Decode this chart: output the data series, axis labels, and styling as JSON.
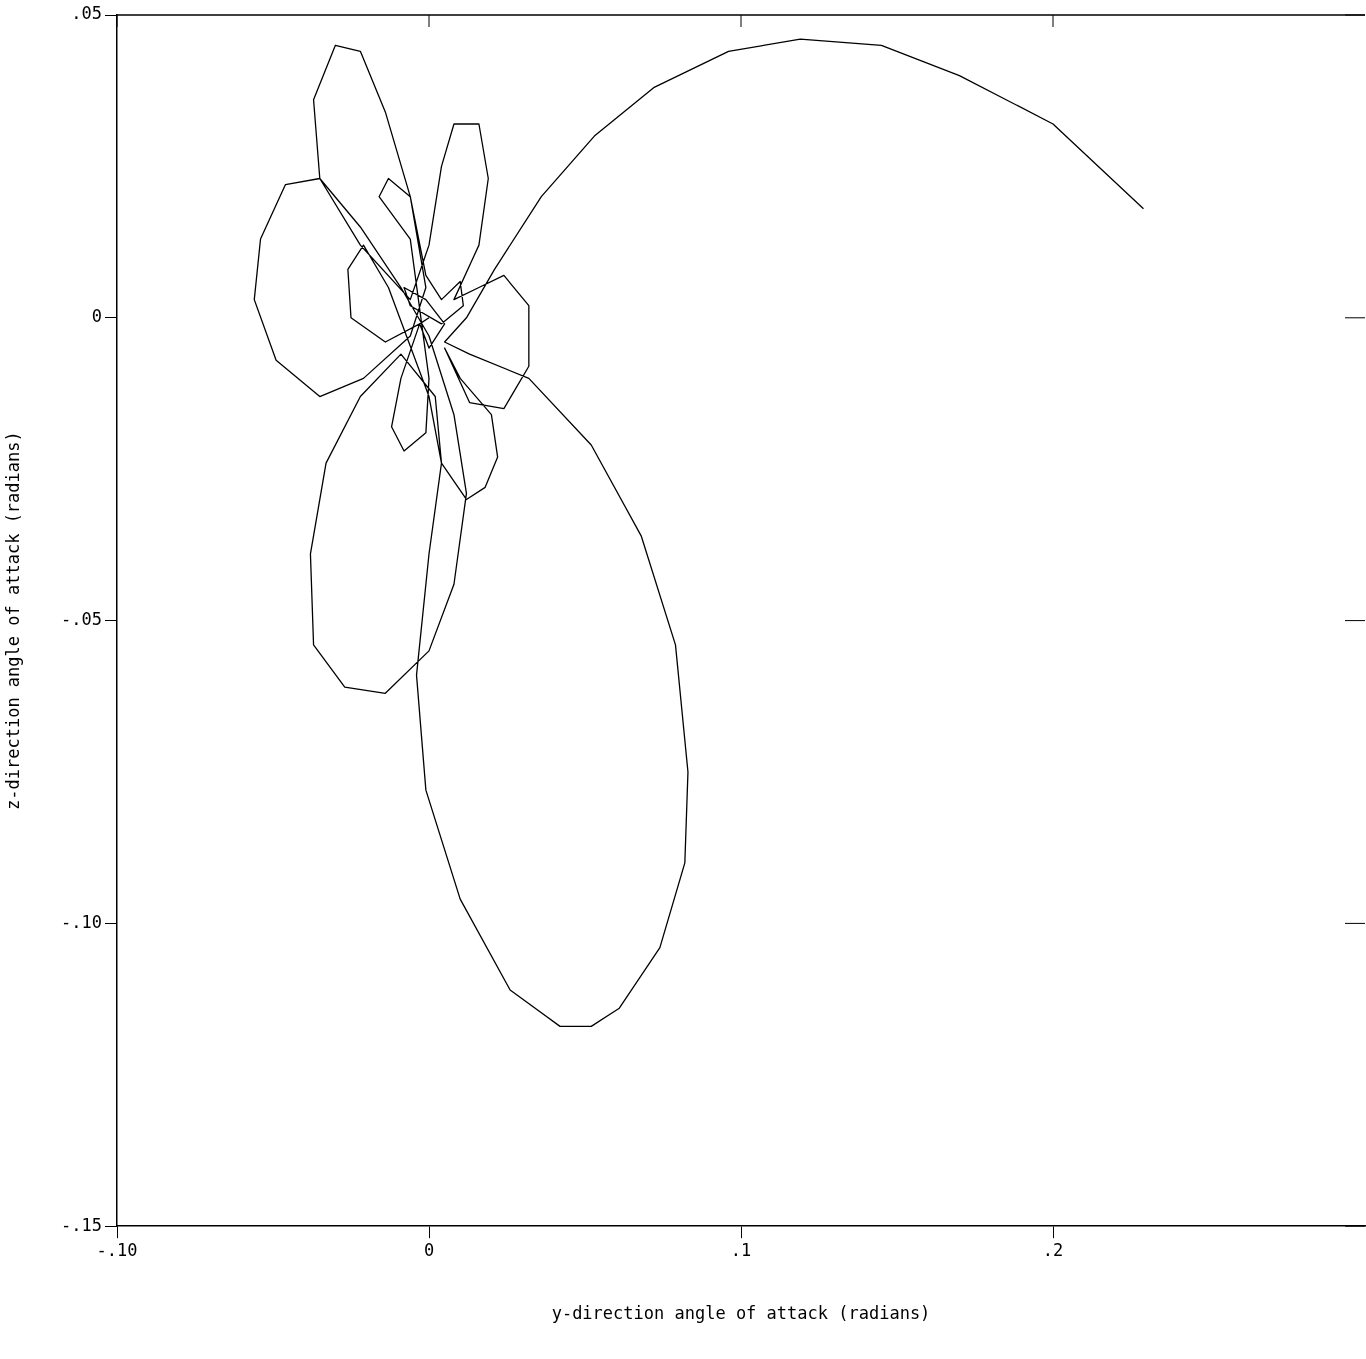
{
  "chart_data": {
    "type": "line",
    "xlabel": "y-direction angle of attack (radians)",
    "ylabel": "z-direction angle of attack (radians)",
    "xlim": [
      -0.1,
      0.3
    ],
    "ylim": [
      -0.15,
      0.05
    ],
    "xticks": [
      {
        "value": -0.1,
        "label": "-.10"
      },
      {
        "value": 0,
        "label": "0"
      },
      {
        "value": 0.1,
        "label": ".1"
      },
      {
        "value": 0.2,
        "label": ".2"
      }
    ],
    "yticks": [
      {
        "value": 0.05,
        "label": ".05"
      },
      {
        "value": 0,
        "label": "0"
      },
      {
        "value": -0.05,
        "label": "-.05"
      },
      {
        "value": -0.1,
        "label": "-.10"
      },
      {
        "value": -0.15,
        "label": "-.15"
      }
    ],
    "grid": false,
    "legend": false,
    "marker": "none",
    "line_style": "solid",
    "series": [
      {
        "color": "#000000",
        "x": [
          0.229,
          0.2,
          0.17,
          0.145,
          0.119,
          0.096,
          0.072,
          0.053,
          0.036,
          0.021,
          0.012,
          0.005,
          0.013,
          0.032,
          0.052,
          0.068,
          0.079,
          0.083,
          0.082,
          0.074,
          0.061,
          0.052,
          0.042,
          0.026,
          0.01,
          -0.001,
          -0.004,
          0.0,
          0.004,
          0.002,
          -0.009,
          -0.022,
          -0.033,
          -0.038,
          -0.037,
          -0.027,
          -0.014,
          0.0,
          0.008,
          0.012,
          0.008,
          0.0,
          -0.009,
          -0.022,
          -0.035,
          -0.046,
          -0.054,
          -0.056,
          -0.049,
          -0.035,
          -0.021,
          -0.006,
          -0.001,
          -0.006,
          -0.014,
          -0.022,
          -0.03,
          -0.037,
          -0.035,
          -0.022,
          -0.006,
          0.0,
          0.004,
          0.008,
          0.016,
          0.019,
          0.016,
          0.008,
          0.016,
          0.024,
          0.032,
          0.032,
          0.024,
          0.013,
          0.005,
          0.01,
          0.02,
          0.022,
          0.018,
          0.012,
          0.004,
          0.0,
          -0.013,
          -0.021,
          -0.026,
          -0.025,
          -0.014,
          -0.003,
          -0.009,
          -0.012,
          -0.008,
          -0.001,
          0.0,
          -0.006,
          -0.016,
          -0.013,
          -0.006,
          -0.001,
          0.004,
          0.01,
          0.011,
          0.004,
          -0.006,
          -0.008,
          -0.001,
          0.005,
          0.0,
          -0.003,
          0.0
        ],
        "values": [
          0.018,
          0.032,
          0.04,
          0.045,
          0.046,
          0.044,
          0.038,
          0.03,
          0.02,
          0.008,
          0.0,
          -0.004,
          -0.006,
          -0.01,
          -0.021,
          -0.036,
          -0.054,
          -0.075,
          -0.09,
          -0.104,
          -0.114,
          -0.117,
          -0.117,
          -0.111,
          -0.096,
          -0.078,
          -0.059,
          -0.039,
          -0.024,
          -0.013,
          -0.006,
          -0.013,
          -0.024,
          -0.039,
          -0.054,
          -0.061,
          -0.062,
          -0.055,
          -0.044,
          -0.029,
          -0.016,
          -0.003,
          0.005,
          0.015,
          0.023,
          0.022,
          0.013,
          0.003,
          -0.007,
          -0.013,
          -0.01,
          -0.003,
          0.005,
          0.02,
          0.034,
          0.044,
          0.045,
          0.036,
          0.023,
          0.012,
          0.003,
          0.012,
          0.025,
          0.032,
          0.032,
          0.023,
          0.012,
          0.003,
          0.005,
          0.007,
          0.002,
          -0.008,
          -0.015,
          -0.014,
          -0.005,
          -0.01,
          -0.016,
          -0.023,
          -0.028,
          -0.03,
          -0.024,
          -0.013,
          0.005,
          0.012,
          0.008,
          0.0,
          -0.004,
          -0.001,
          -0.01,
          -0.018,
          -0.022,
          -0.019,
          -0.01,
          0.013,
          0.02,
          0.023,
          0.02,
          0.007,
          0.003,
          0.006,
          0.002,
          -0.001,
          0.002,
          0.005,
          0.003,
          -0.001,
          -0.005,
          -0.001,
          0.0
        ]
      }
    ]
  }
}
